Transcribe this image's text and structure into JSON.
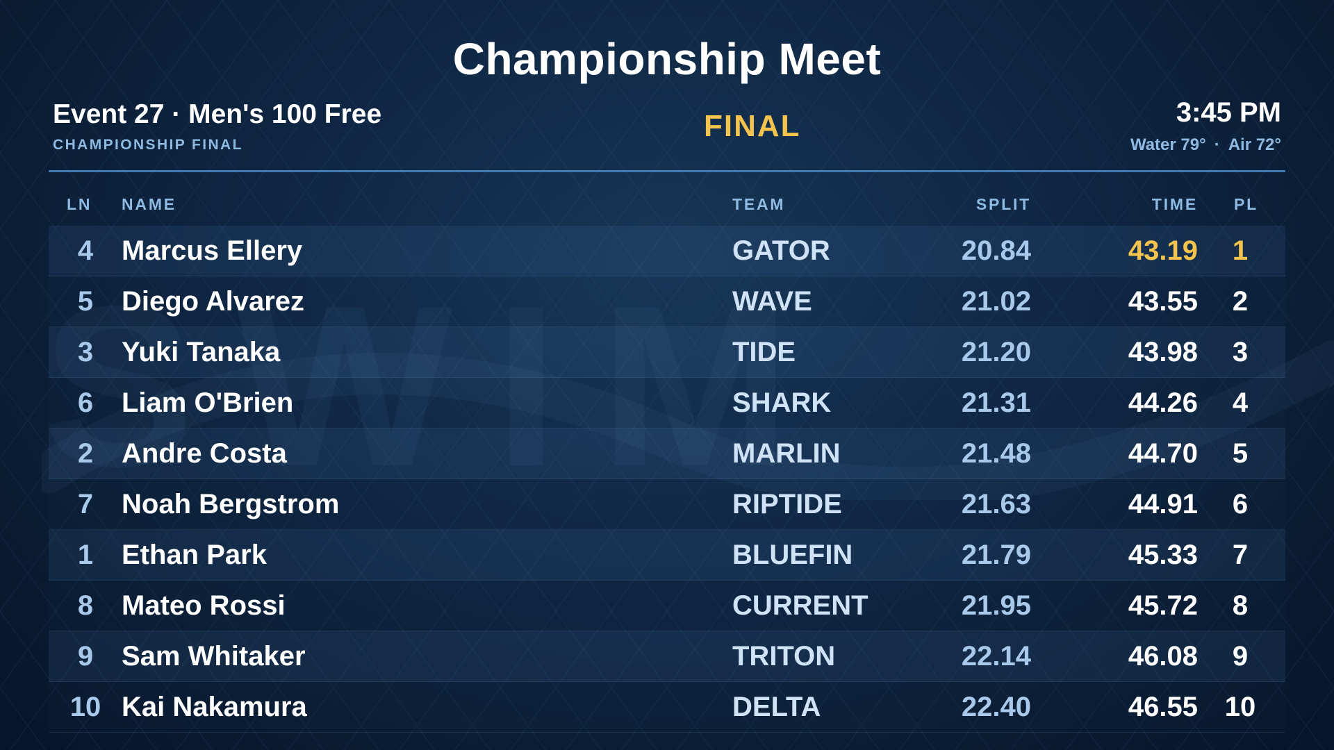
{
  "colors": {
    "background": "#0f2744",
    "accent_gold": "#f4c34d",
    "label_blue": "#8fbbe3",
    "divider": "#3f7ab5"
  },
  "title": "Championship Meet",
  "event": {
    "name": "Event 27 · Men's 100 Free",
    "subtitle": "CHAMPIONSHIP FINAL",
    "status": "FINAL"
  },
  "clock": {
    "time": "3:45 PM",
    "water": "Water 79°",
    "air": "Air 72°",
    "separator": "·"
  },
  "watermark_text": "SWIM",
  "table": {
    "columns": {
      "lane": "LN",
      "name": "NAME",
      "team": "TEAM",
      "split": "SPLIT",
      "time": "TIME",
      "place": "PL"
    },
    "rows": [
      {
        "lane": "4",
        "name": "Marcus Ellery",
        "team": "GATOR",
        "split": "20.84",
        "time": "43.19",
        "place": "1"
      },
      {
        "lane": "5",
        "name": "Diego Alvarez",
        "team": "WAVE",
        "split": "21.02",
        "time": "43.55",
        "place": "2"
      },
      {
        "lane": "3",
        "name": "Yuki Tanaka",
        "team": "TIDE",
        "split": "21.20",
        "time": "43.98",
        "place": "3"
      },
      {
        "lane": "6",
        "name": "Liam O'Brien",
        "team": "SHARK",
        "split": "21.31",
        "time": "44.26",
        "place": "4"
      },
      {
        "lane": "2",
        "name": "Andre Costa",
        "team": "MARLIN",
        "split": "21.48",
        "time": "44.70",
        "place": "5"
      },
      {
        "lane": "7",
        "name": "Noah Bergstrom",
        "team": "RIPTIDE",
        "split": "21.63",
        "time": "44.91",
        "place": "6"
      },
      {
        "lane": "1",
        "name": "Ethan Park",
        "team": "BLUEFIN",
        "split": "21.79",
        "time": "45.33",
        "place": "7"
      },
      {
        "lane": "8",
        "name": "Mateo Rossi",
        "team": "CURRENT",
        "split": "21.95",
        "time": "45.72",
        "place": "8"
      },
      {
        "lane": "9",
        "name": "Sam Whitaker",
        "team": "TRITON",
        "split": "22.14",
        "time": "46.08",
        "place": "9"
      },
      {
        "lane": "10",
        "name": "Kai Nakamura",
        "team": "DELTA",
        "split": "22.40",
        "time": "46.55",
        "place": "10"
      }
    ]
  }
}
